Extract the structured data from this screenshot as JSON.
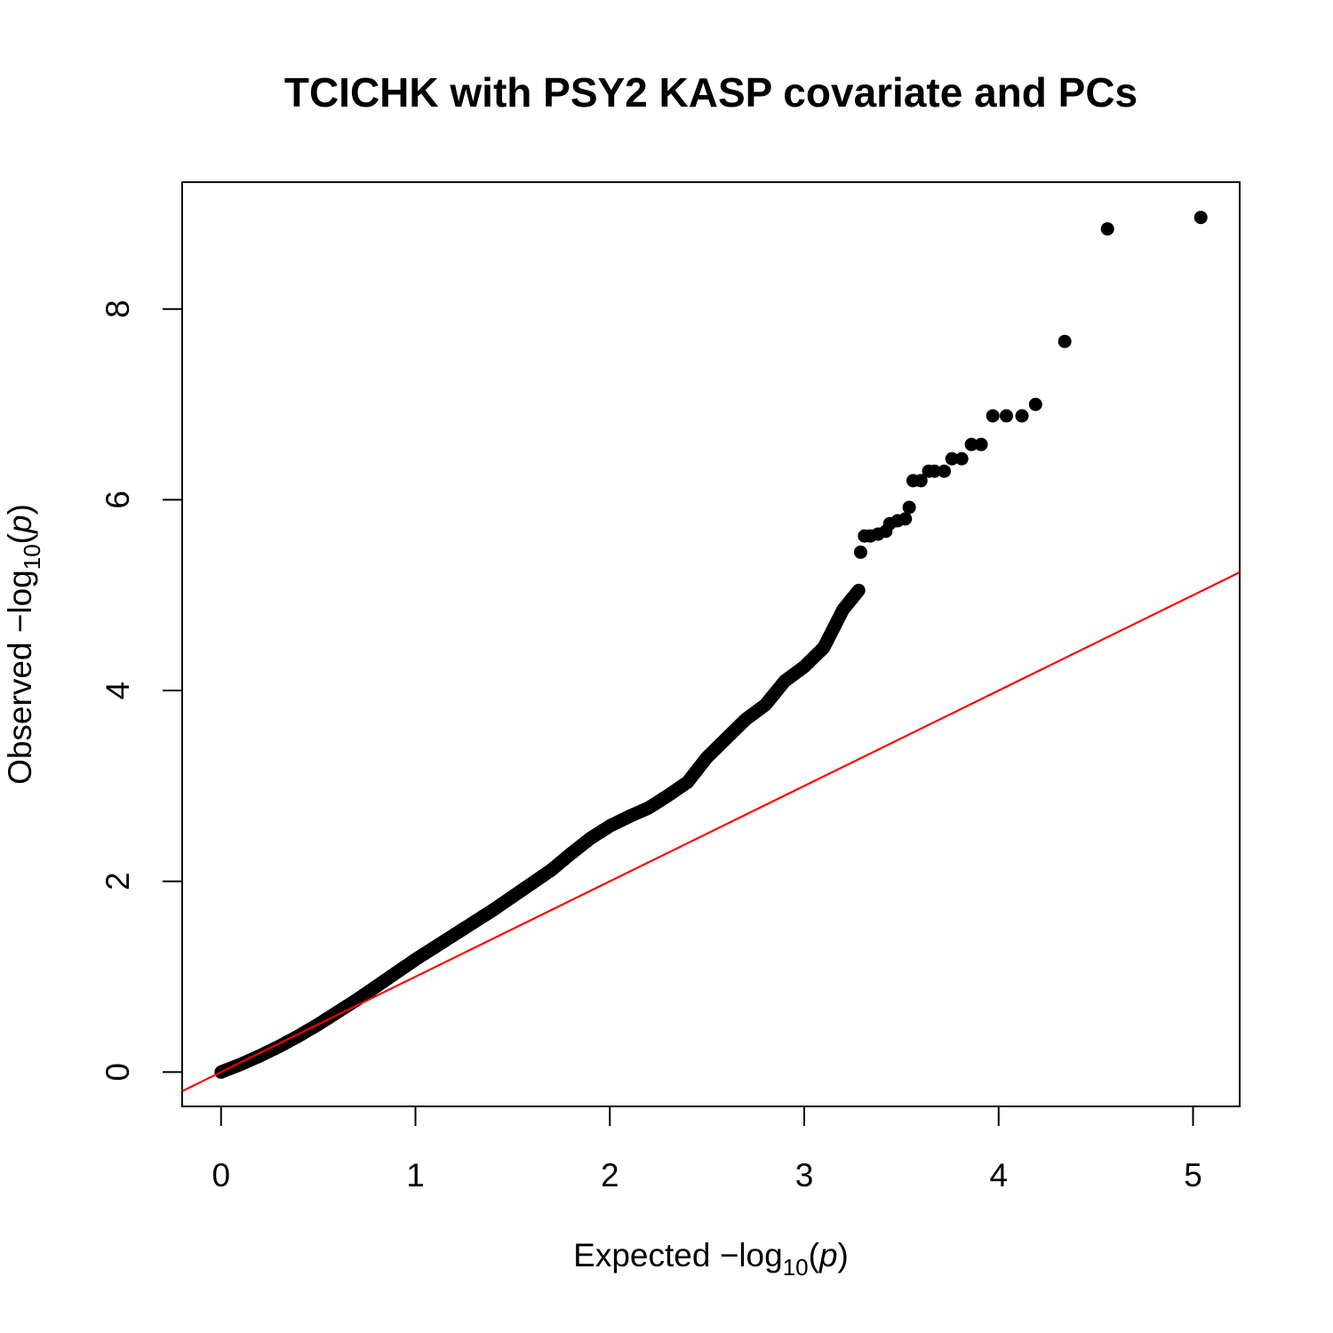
{
  "chart_data": {
    "type": "scatter",
    "title": "TCICHK with PSY2 KASP covariate and PCs",
    "xlabel": {
      "prefix": "Expected ",
      "minus": "−",
      "log": "log",
      "base": "10",
      "open": "(",
      "p": "p",
      "close": ")"
    },
    "ylabel": {
      "prefix": "Observed ",
      "minus": "−",
      "log": "log",
      "base": "10",
      "open": "(",
      "p": "p",
      "close": ")"
    },
    "x_ticks": [
      0,
      1,
      2,
      3,
      4,
      5
    ],
    "y_ticks": [
      0,
      2,
      4,
      6,
      8
    ],
    "x_tick_labels": [
      "0",
      "1",
      "2",
      "3",
      "4",
      "5"
    ],
    "y_tick_labels": [
      "0",
      "2",
      "4",
      "6",
      "8"
    ],
    "xlim": [
      -0.2,
      5.24
    ],
    "ylim": [
      -0.36,
      9.33
    ],
    "grid": false,
    "point_color": "#000000",
    "reference_line": {
      "slope": 1,
      "intercept": 0,
      "color": "#ff0000"
    },
    "curve_points": [
      {
        "x": 0.0,
        "y": 0.0
      },
      {
        "x": 0.1,
        "y": 0.08
      },
      {
        "x": 0.2,
        "y": 0.17
      },
      {
        "x": 0.3,
        "y": 0.27
      },
      {
        "x": 0.4,
        "y": 0.38
      },
      {
        "x": 0.5,
        "y": 0.5
      },
      {
        "x": 0.6,
        "y": 0.63
      },
      {
        "x": 0.7,
        "y": 0.76
      },
      {
        "x": 0.8,
        "y": 0.9
      },
      {
        "x": 0.9,
        "y": 1.04
      },
      {
        "x": 1.0,
        "y": 1.18
      },
      {
        "x": 1.1,
        "y": 1.31
      },
      {
        "x": 1.2,
        "y": 1.44
      },
      {
        "x": 1.3,
        "y": 1.57
      },
      {
        "x": 1.4,
        "y": 1.7
      },
      {
        "x": 1.5,
        "y": 1.84
      },
      {
        "x": 1.6,
        "y": 1.98
      },
      {
        "x": 1.7,
        "y": 2.12
      },
      {
        "x": 1.8,
        "y": 2.29
      },
      {
        "x": 1.9,
        "y": 2.45
      },
      {
        "x": 2.0,
        "y": 2.58
      },
      {
        "x": 2.1,
        "y": 2.68
      },
      {
        "x": 2.2,
        "y": 2.77
      },
      {
        "x": 2.3,
        "y": 2.9
      },
      {
        "x": 2.4,
        "y": 3.04
      },
      {
        "x": 2.5,
        "y": 3.3
      },
      {
        "x": 2.6,
        "y": 3.5
      },
      {
        "x": 2.7,
        "y": 3.7
      },
      {
        "x": 2.8,
        "y": 3.85
      },
      {
        "x": 2.9,
        "y": 4.1
      },
      {
        "x": 3.0,
        "y": 4.25
      },
      {
        "x": 3.1,
        "y": 4.45
      },
      {
        "x": 3.2,
        "y": 4.85
      },
      {
        "x": 3.28,
        "y": 5.05
      }
    ],
    "points": [
      {
        "x": 3.29,
        "y": 5.45
      },
      {
        "x": 3.31,
        "y": 5.62
      },
      {
        "x": 3.34,
        "y": 5.62
      },
      {
        "x": 3.38,
        "y": 5.64
      },
      {
        "x": 3.42,
        "y": 5.67
      },
      {
        "x": 3.44,
        "y": 5.75
      },
      {
        "x": 3.48,
        "y": 5.78
      },
      {
        "x": 3.52,
        "y": 5.8
      },
      {
        "x": 3.54,
        "y": 5.92
      },
      {
        "x": 3.56,
        "y": 6.2
      },
      {
        "x": 3.6,
        "y": 6.2
      },
      {
        "x": 3.64,
        "y": 6.3
      },
      {
        "x": 3.67,
        "y": 6.3
      },
      {
        "x": 3.72,
        "y": 6.3
      },
      {
        "x": 3.76,
        "y": 6.43
      },
      {
        "x": 3.81,
        "y": 6.43
      },
      {
        "x": 3.86,
        "y": 6.58
      },
      {
        "x": 3.91,
        "y": 6.58
      },
      {
        "x": 3.97,
        "y": 6.88
      },
      {
        "x": 4.04,
        "y": 6.88
      },
      {
        "x": 4.12,
        "y": 6.88
      },
      {
        "x": 4.19,
        "y": 7.0
      },
      {
        "x": 4.34,
        "y": 7.66
      },
      {
        "x": 4.56,
        "y": 8.84
      },
      {
        "x": 5.04,
        "y": 8.96
      }
    ]
  }
}
